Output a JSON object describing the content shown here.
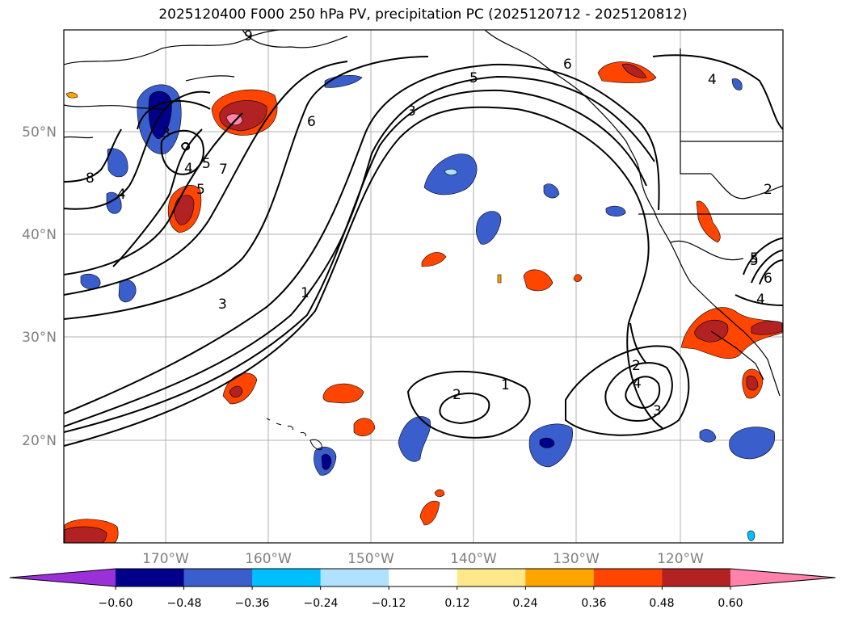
{
  "title": "2025120400 F000 250 hPa PV, precipitation PC (2025120712 - 2025120812)",
  "map": {
    "lon_ticks": [
      "170°W",
      "160°W",
      "150°W",
      "140°W",
      "130°W",
      "120°W"
    ],
    "lat_ticks": [
      "50°N",
      "40°N",
      "30°N",
      "20°N"
    ],
    "contour_labels": [
      "9",
      "8",
      "7",
      "6",
      "5",
      "4",
      "5",
      "6",
      "4",
      "5",
      "3",
      "2",
      "3",
      "1",
      "5",
      "4",
      "5",
      "6",
      "4",
      "1",
      "2",
      "2",
      "4",
      "3",
      "3"
    ]
  },
  "colorbar": {
    "levels": [
      "−0.60",
      "−0.48",
      "−0.36",
      "−0.24",
      "−0.12",
      "0.12",
      "0.24",
      "0.36",
      "0.48",
      "0.60"
    ],
    "colors": [
      "#9b30d9",
      "#00008b",
      "#3a5fcd",
      "#00bfff",
      "#b0e2ff",
      "#ffffff",
      "#ffe88a",
      "#ffa500",
      "#ff4500",
      "#b22222",
      "#ff82ab"
    ]
  }
}
